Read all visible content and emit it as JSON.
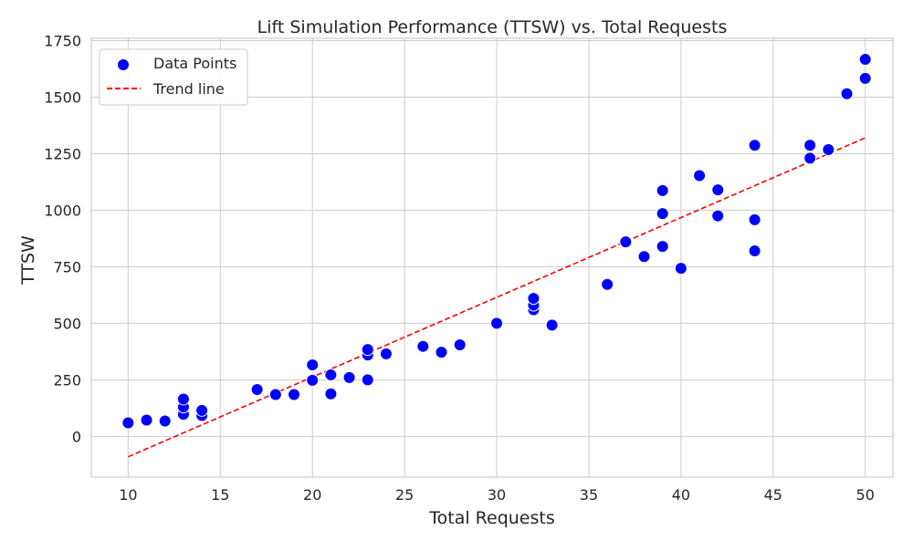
{
  "chart_data": {
    "type": "scatter",
    "title": "Lift Simulation Performance (TTSW) vs. Total Requests",
    "xlabel": "Total Requests",
    "ylabel": "TTSW",
    "xlim": [
      8,
      51.5
    ],
    "ylim": [
      -180,
      1760
    ],
    "x_ticks": [
      "10",
      "15",
      "20",
      "25",
      "30",
      "35",
      "40",
      "45",
      "50"
    ],
    "y_ticks": [
      "0",
      "250",
      "500",
      "750",
      "1000",
      "1250",
      "1500",
      "1750"
    ],
    "grid": true,
    "legend_position": "top-left",
    "series": [
      {
        "name": "Data Points",
        "kind": "scatter",
        "color": "#0000ff",
        "points": [
          [
            10,
            60
          ],
          [
            11,
            72
          ],
          [
            12,
            68
          ],
          [
            13,
            98
          ],
          [
            13,
            130
          ],
          [
            13,
            165
          ],
          [
            14,
            92
          ],
          [
            14,
            115
          ],
          [
            17,
            207
          ],
          [
            18,
            185
          ],
          [
            19,
            185
          ],
          [
            20,
            248
          ],
          [
            20,
            316
          ],
          [
            21,
            188
          ],
          [
            21,
            272
          ],
          [
            22,
            260
          ],
          [
            23,
            250
          ],
          [
            23,
            360
          ],
          [
            23,
            384
          ],
          [
            24,
            365
          ],
          [
            26,
            398
          ],
          [
            27,
            372
          ],
          [
            28,
            405
          ],
          [
            30,
            500
          ],
          [
            32,
            560
          ],
          [
            32,
            580
          ],
          [
            32,
            610
          ],
          [
            33,
            492
          ],
          [
            36,
            672
          ],
          [
            37,
            860
          ],
          [
            38,
            795
          ],
          [
            39,
            840
          ],
          [
            39,
            985
          ],
          [
            39,
            1087
          ],
          [
            40,
            743
          ],
          [
            41,
            1153
          ],
          [
            42,
            975
          ],
          [
            42,
            1090
          ],
          [
            44,
            820
          ],
          [
            44,
            958
          ],
          [
            44,
            1287
          ],
          [
            47,
            1230
          ],
          [
            47,
            1287
          ],
          [
            48,
            1268
          ],
          [
            49,
            1515
          ],
          [
            50,
            1583
          ],
          [
            50,
            1667
          ]
        ]
      },
      {
        "name": "Trend line",
        "kind": "line",
        "style": "dashed",
        "color": "#ff0000",
        "x": [
          10,
          50
        ],
        "y": [
          -90,
          1320
        ]
      }
    ]
  }
}
